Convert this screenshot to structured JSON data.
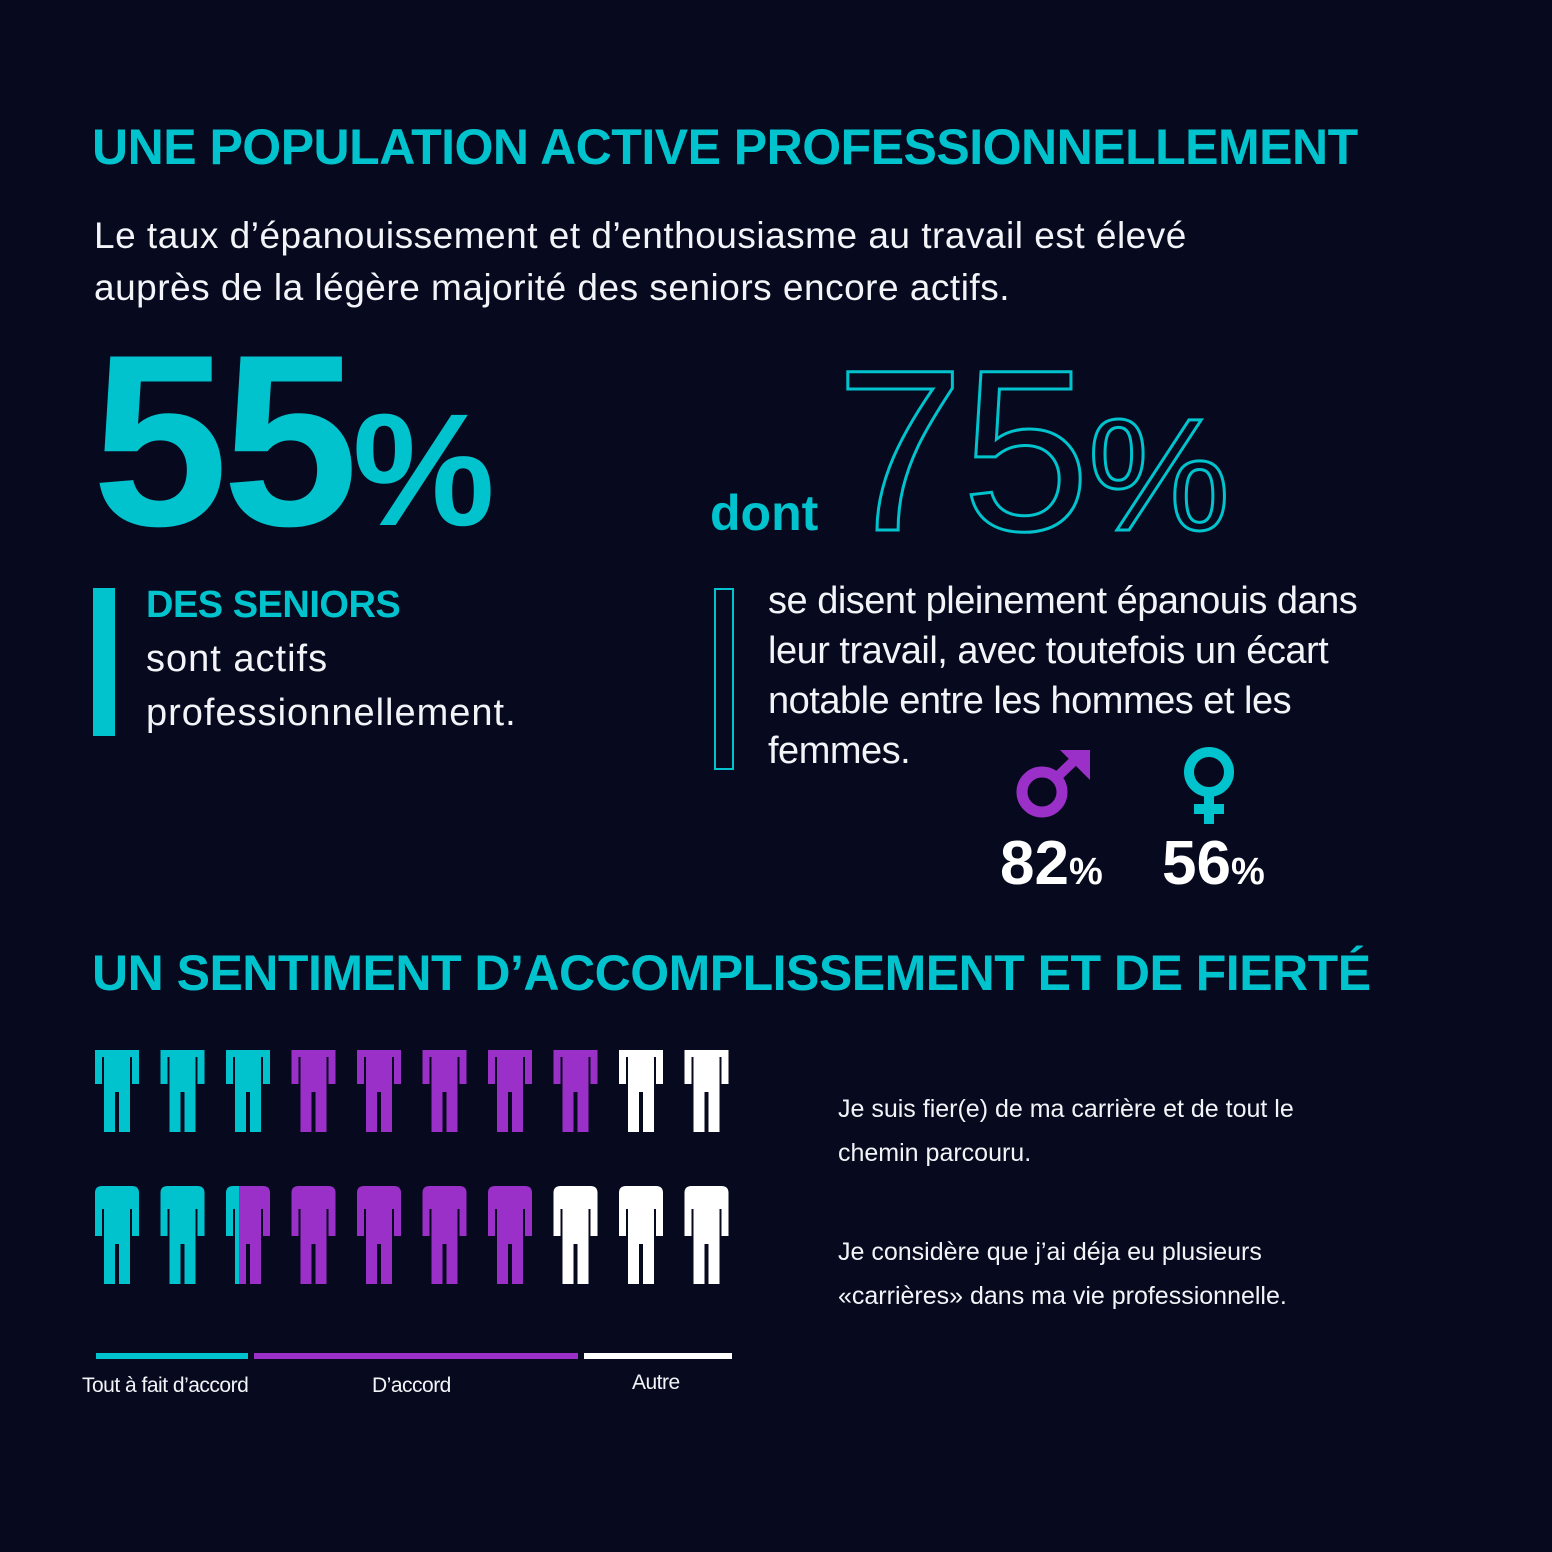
{
  "section1": {
    "title": "UNE POPULATION ACTIVE PROFESSIONNELLEMENT",
    "intro_line1": "Le taux d’épanouissement et d’enthousiasme au travail est élevé",
    "intro_line2": "auprès de la légère majorité des seniors encore actifs."
  },
  "stat_active": {
    "value": "55",
    "unit": "%",
    "label": "DES SENIORS",
    "text_line1": "sont actifs",
    "text_line2": "professionnellement."
  },
  "stat_fulfilled": {
    "prefix": "dont",
    "value": "75",
    "unit": "%",
    "text_line1": "se disent pleinement épanouis dans",
    "text_line2": "leur travail, avec toutefois un écart",
    "text_line3": "notable entre les hommes et les",
    "text_line4": "femmes."
  },
  "gender": {
    "male": {
      "icon": "male-symbol-icon",
      "value": "82",
      "unit": "%",
      "color": "#9b30c9"
    },
    "female": {
      "icon": "female-symbol-icon",
      "value": "56",
      "unit": "%",
      "color": "#00c3cd"
    }
  },
  "section2": {
    "title": "UN SENTIMENT D’ACCOMPLISSEMENT ET DE FIERTÉ"
  },
  "chart_data": {
    "type": "pictogram",
    "icon": "person-icon",
    "icons_per_row": 10,
    "colors": {
      "tout_a_fait": "#00c3cd",
      "accord": "#9b30c9",
      "autre": "#ffffff"
    },
    "rows": [
      {
        "statement_line1": "Je suis fier(e) de ma carrière et de tout le",
        "statement_line2": "chemin parcouru.",
        "tout_a_fait": 3,
        "accord": 5,
        "autre": 2
      },
      {
        "statement_line1": "Je considère que j’ai déja eu plusieurs",
        "statement_line2": "«carrières» dans ma vie professionnelle.",
        "tout_a_fait": 2.3,
        "accord": 4.7,
        "autre": 3
      }
    ],
    "legend": [
      "Tout à fait d’accord",
      "D’accord",
      "Autre"
    ]
  }
}
